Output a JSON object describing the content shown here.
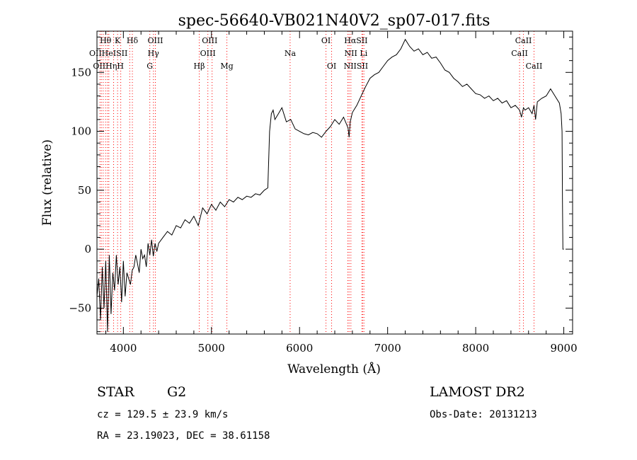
{
  "chart_data": {
    "type": "line",
    "title": "spec-56640-VB021N40V2_sp07-017.fits",
    "xlabel": "Wavelength (Å)",
    "ylabel": "Flux (relative)",
    "xlim": [
      3700,
      9100
    ],
    "ylim": [
      -72,
      185
    ],
    "xticks": [
      4000,
      5000,
      6000,
      7000,
      8000,
      9000
    ],
    "yticks": [
      -50,
      0,
      50,
      100,
      150
    ],
    "grid": false,
    "series": [
      {
        "color": "#000000",
        "x": [
          3700,
          3720,
          3740,
          3760,
          3780,
          3800,
          3820,
          3840,
          3860,
          3880,
          3900,
          3920,
          3940,
          3960,
          3980,
          4000,
          4020,
          4040,
          4060,
          4080,
          4100,
          4120,
          4140,
          4160,
          4180,
          4200,
          4220,
          4240,
          4260,
          4280,
          4300,
          4320,
          4340,
          4360,
          4380,
          4400,
          4450,
          4500,
          4550,
          4600,
          4650,
          4700,
          4750,
          4800,
          4850,
          4900,
          4950,
          5000,
          5050,
          5100,
          5150,
          5200,
          5250,
          5300,
          5350,
          5400,
          5450,
          5500,
          5550,
          5600,
          5640,
          5660,
          5680,
          5700,
          5720,
          5760,
          5800,
          5850,
          5900,
          5950,
          6000,
          6050,
          6100,
          6150,
          6200,
          6250,
          6300,
          6350,
          6400,
          6450,
          6500,
          6550,
          6563,
          6575,
          6600,
          6650,
          6700,
          6750,
          6800,
          6850,
          6900,
          6950,
          7000,
          7050,
          7100,
          7150,
          7200,
          7250,
          7300,
          7350,
          7400,
          7450,
          7500,
          7550,
          7600,
          7650,
          7700,
          7750,
          7800,
          7850,
          7900,
          7950,
          8000,
          8050,
          8100,
          8150,
          8200,
          8250,
          8300,
          8350,
          8400,
          8450,
          8498,
          8520,
          8542,
          8560,
          8600,
          8640,
          8662,
          8680,
          8700,
          8750,
          8800,
          8850,
          8900,
          8950,
          8970,
          8980,
          8985,
          8990,
          9000
        ],
        "y": [
          -40,
          -25,
          -60,
          -15,
          -50,
          -10,
          -70,
          -5,
          -55,
          -20,
          -35,
          -5,
          -30,
          -15,
          -45,
          -10,
          -40,
          -20,
          -25,
          -30,
          -18,
          -15,
          -5,
          -12,
          -20,
          0,
          -8,
          -5,
          -15,
          5,
          -5,
          8,
          -6,
          5,
          -2,
          5,
          10,
          15,
          12,
          20,
          18,
          25,
          22,
          28,
          20,
          35,
          30,
          38,
          33,
          40,
          36,
          42,
          40,
          44,
          42,
          45,
          44,
          47,
          46,
          50,
          52,
          100,
          115,
          118,
          110,
          115,
          120,
          108,
          110,
          102,
          100,
          98,
          97,
          99,
          98,
          95,
          100,
          104,
          110,
          106,
          112,
          103,
          95,
          108,
          116,
          122,
          130,
          138,
          145,
          148,
          150,
          155,
          160,
          163,
          165,
          170,
          178,
          172,
          168,
          170,
          165,
          167,
          162,
          163,
          158,
          152,
          150,
          145,
          142,
          138,
          140,
          136,
          132,
          131,
          128,
          130,
          126,
          128,
          124,
          126,
          120,
          122,
          118,
          112,
          120,
          118,
          120,
          115,
          122,
          110,
          125,
          128,
          130,
          136,
          130,
          124,
          115,
          100,
          40,
          0,
          0
        ]
      }
    ],
    "lines": {
      "color": "#ff0000",
      "x": [
        3734,
        3750,
        3771,
        3798,
        3820,
        3835,
        3889,
        3934,
        3970,
        4072,
        4102,
        4300,
        4341,
        4363,
        4861,
        4959,
        5007,
        5175,
        5893,
        6300,
        6364,
        6548,
        6563,
        6583,
        6708,
        6716,
        6731,
        8498,
        8542,
        8662
      ]
    },
    "line_labels": [
      {
        "text": "Hθ",
        "x": 3798,
        "row": 1
      },
      {
        "text": "K",
        "x": 3934,
        "row": 1
      },
      {
        "text": "Hδ",
        "x": 4102,
        "row": 1
      },
      {
        "text": "OIII",
        "x": 4363,
        "row": 1
      },
      {
        "text": "OIII",
        "x": 4980,
        "row": 1
      },
      {
        "text": "OI",
        "x": 6300,
        "row": 1
      },
      {
        "text": "HαSII",
        "x": 6640,
        "row": 1
      },
      {
        "text": "CaII",
        "x": 8542,
        "row": 1
      },
      {
        "text": "OIIHeISII",
        "x": 3830,
        "row": 2
      },
      {
        "text": "Hγ",
        "x": 4341,
        "row": 2
      },
      {
        "text": "OIII",
        "x": 4959,
        "row": 2
      },
      {
        "text": "Na",
        "x": 5893,
        "row": 2
      },
      {
        "text": "NII Li",
        "x": 6640,
        "row": 2
      },
      {
        "text": "CaII",
        "x": 8498,
        "row": 2
      },
      {
        "text": "OIIHηH",
        "x": 3830,
        "row": 3
      },
      {
        "text": "G",
        "x": 4300,
        "row": 3
      },
      {
        "text": "Hβ",
        "x": 4861,
        "row": 3
      },
      {
        "text": "Mg",
        "x": 5175,
        "row": 3
      },
      {
        "text": "OI",
        "x": 6364,
        "row": 3
      },
      {
        "text": "NIISII",
        "x": 6640,
        "row": 3
      },
      {
        "text": "CaII",
        "x": 8662,
        "row": 3
      }
    ]
  },
  "footer": {
    "class_label": "STAR",
    "subclass_label": "G2",
    "survey_label": "LAMOST DR2",
    "cz_text": "cz = 129.5 ± 23.9 km/s",
    "obs_date_text": "Obs-Date: 20131213",
    "coords_text": "RA =  23.19023, DEC =  38.61158"
  }
}
